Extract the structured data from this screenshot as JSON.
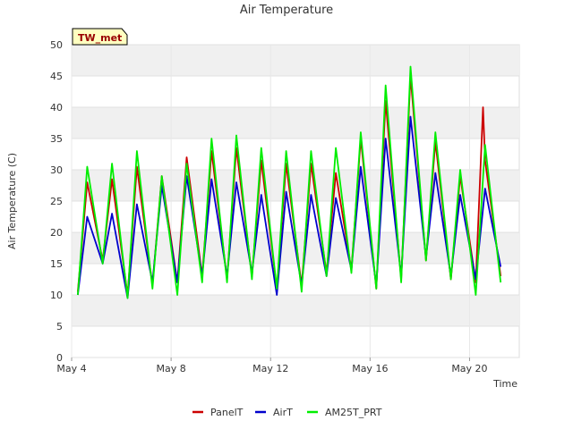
{
  "chart_data": {
    "type": "line",
    "title": "Air Temperature",
    "xlabel": "Time",
    "ylabel": "Air Temperature (C)",
    "station_label": "TW_met",
    "ylim": [
      0,
      50
    ],
    "yticks": [
      0,
      5,
      10,
      15,
      20,
      25,
      30,
      35,
      40,
      45,
      50
    ],
    "xlim": [
      "2024-05-04",
      "2024-05-22"
    ],
    "xticks": [
      {
        "date": "2024-05-04",
        "label": "May 4"
      },
      {
        "date": "2024-05-08",
        "label": "May 8"
      },
      {
        "date": "2024-05-12",
        "label": "May 12"
      },
      {
        "date": "2024-05-16",
        "label": "May 16"
      },
      {
        "date": "2024-05-20",
        "label": "May 20"
      }
    ],
    "grid": true,
    "legend_position": "bottom",
    "series": [
      {
        "name": "PanelT",
        "color": "#cc0000",
        "points": [
          [
            "2024-05-04 06:00",
            10.5
          ],
          [
            "2024-05-04 15:00",
            28.0
          ],
          [
            "2024-05-05 06:00",
            15.5
          ],
          [
            "2024-05-05 15:00",
            28.5
          ],
          [
            "2024-05-06 06:00",
            10.0
          ],
          [
            "2024-05-06 15:00",
            30.5
          ],
          [
            "2024-05-07 06:00",
            11.5
          ],
          [
            "2024-05-07 15:00",
            29.0
          ],
          [
            "2024-05-08 06:00",
            12.0
          ],
          [
            "2024-05-08 15:00",
            32.0
          ],
          [
            "2024-05-09 06:00",
            13.0
          ],
          [
            "2024-05-09 15:00",
            33.0
          ],
          [
            "2024-05-10 06:00",
            12.5
          ],
          [
            "2024-05-10 15:00",
            33.5
          ],
          [
            "2024-05-11 06:00",
            13.0
          ],
          [
            "2024-05-11 15:00",
            31.5
          ],
          [
            "2024-05-12 06:00",
            11.0
          ],
          [
            "2024-05-12 15:00",
            31.0
          ],
          [
            "2024-05-13 06:00",
            11.5
          ],
          [
            "2024-05-13 15:00",
            31.0
          ],
          [
            "2024-05-14 06:00",
            13.5
          ],
          [
            "2024-05-14 15:00",
            29.5
          ],
          [
            "2024-05-15 06:00",
            14.0
          ],
          [
            "2024-05-15 15:00",
            35.0
          ],
          [
            "2024-05-16 06:00",
            11.0
          ],
          [
            "2024-05-16 15:00",
            41.0
          ],
          [
            "2024-05-17 06:00",
            12.5
          ],
          [
            "2024-05-17 15:00",
            45.0
          ],
          [
            "2024-05-18 06:00",
            15.5
          ],
          [
            "2024-05-18 15:00",
            34.5
          ],
          [
            "2024-05-19 06:00",
            12.5
          ],
          [
            "2024-05-19 15:00",
            29.0
          ],
          [
            "2024-05-20 06:00",
            12.0
          ],
          [
            "2024-05-20 13:00",
            40.0
          ],
          [
            "2024-05-20 15:00",
            31.5
          ],
          [
            "2024-05-21 06:00",
            13.0
          ]
        ]
      },
      {
        "name": "AirT",
        "color": "#0000cc",
        "points": [
          [
            "2024-05-04 06:00",
            10.0
          ],
          [
            "2024-05-04 15:00",
            22.5
          ],
          [
            "2024-05-05 06:00",
            15.0
          ],
          [
            "2024-05-05 15:00",
            23.0
          ],
          [
            "2024-05-06 06:00",
            9.5
          ],
          [
            "2024-05-06 15:00",
            24.5
          ],
          [
            "2024-05-07 06:00",
            12.0
          ],
          [
            "2024-05-07 15:00",
            27.5
          ],
          [
            "2024-05-08 06:00",
            12.0
          ],
          [
            "2024-05-08 15:00",
            29.0
          ],
          [
            "2024-05-09 06:00",
            13.0
          ],
          [
            "2024-05-09 15:00",
            28.5
          ],
          [
            "2024-05-10 06:00",
            13.0
          ],
          [
            "2024-05-10 15:00",
            28.0
          ],
          [
            "2024-05-11 06:00",
            13.5
          ],
          [
            "2024-05-11 15:00",
            26.0
          ],
          [
            "2024-05-12 06:00",
            10.0
          ],
          [
            "2024-05-12 15:00",
            26.5
          ],
          [
            "2024-05-13 06:00",
            11.5
          ],
          [
            "2024-05-13 15:00",
            26.0
          ],
          [
            "2024-05-14 06:00",
            13.0
          ],
          [
            "2024-05-14 15:00",
            25.5
          ],
          [
            "2024-05-15 06:00",
            14.0
          ],
          [
            "2024-05-15 15:00",
            30.5
          ],
          [
            "2024-05-16 06:00",
            11.5
          ],
          [
            "2024-05-16 15:00",
            35.0
          ],
          [
            "2024-05-17 06:00",
            13.0
          ],
          [
            "2024-05-17 15:00",
            38.5
          ],
          [
            "2024-05-18 06:00",
            16.0
          ],
          [
            "2024-05-18 15:00",
            29.5
          ],
          [
            "2024-05-19 06:00",
            13.0
          ],
          [
            "2024-05-19 15:00",
            26.0
          ],
          [
            "2024-05-20 06:00",
            12.5
          ],
          [
            "2024-05-20 15:00",
            27.0
          ],
          [
            "2024-05-21 06:00",
            14.5
          ]
        ]
      },
      {
        "name": "AM25T_PRT",
        "color": "#00ee00",
        "points": [
          [
            "2024-05-04 06:00",
            10.0
          ],
          [
            "2024-05-04 15:00",
            30.5
          ],
          [
            "2024-05-05 06:00",
            15.0
          ],
          [
            "2024-05-05 15:00",
            31.0
          ],
          [
            "2024-05-06 06:00",
            9.5
          ],
          [
            "2024-05-06 15:00",
            33.0
          ],
          [
            "2024-05-07 06:00",
            11.0
          ],
          [
            "2024-05-07 15:00",
            29.0
          ],
          [
            "2024-05-08 06:00",
            10.0
          ],
          [
            "2024-05-08 15:00",
            31.0
          ],
          [
            "2024-05-09 06:00",
            12.0
          ],
          [
            "2024-05-09 15:00",
            35.0
          ],
          [
            "2024-05-10 06:00",
            12.0
          ],
          [
            "2024-05-10 15:00",
            35.5
          ],
          [
            "2024-05-11 06:00",
            12.5
          ],
          [
            "2024-05-11 15:00",
            33.5
          ],
          [
            "2024-05-12 06:00",
            11.0
          ],
          [
            "2024-05-12 15:00",
            33.0
          ],
          [
            "2024-05-13 06:00",
            10.5
          ],
          [
            "2024-05-13 15:00",
            33.0
          ],
          [
            "2024-05-14 06:00",
            13.0
          ],
          [
            "2024-05-14 15:00",
            33.5
          ],
          [
            "2024-05-15 06:00",
            13.5
          ],
          [
            "2024-05-15 15:00",
            36.0
          ],
          [
            "2024-05-16 06:00",
            11.0
          ],
          [
            "2024-05-16 15:00",
            43.5
          ],
          [
            "2024-05-17 06:00",
            12.0
          ],
          [
            "2024-05-17 15:00",
            46.5
          ],
          [
            "2024-05-18 06:00",
            15.5
          ],
          [
            "2024-05-18 15:00",
            36.0
          ],
          [
            "2024-05-19 06:00",
            12.5
          ],
          [
            "2024-05-19 15:00",
            30.0
          ],
          [
            "2024-05-20 06:00",
            10.0
          ],
          [
            "2024-05-20 15:00",
            34.0
          ],
          [
            "2024-05-21 06:00",
            12.0
          ]
        ]
      }
    ]
  }
}
